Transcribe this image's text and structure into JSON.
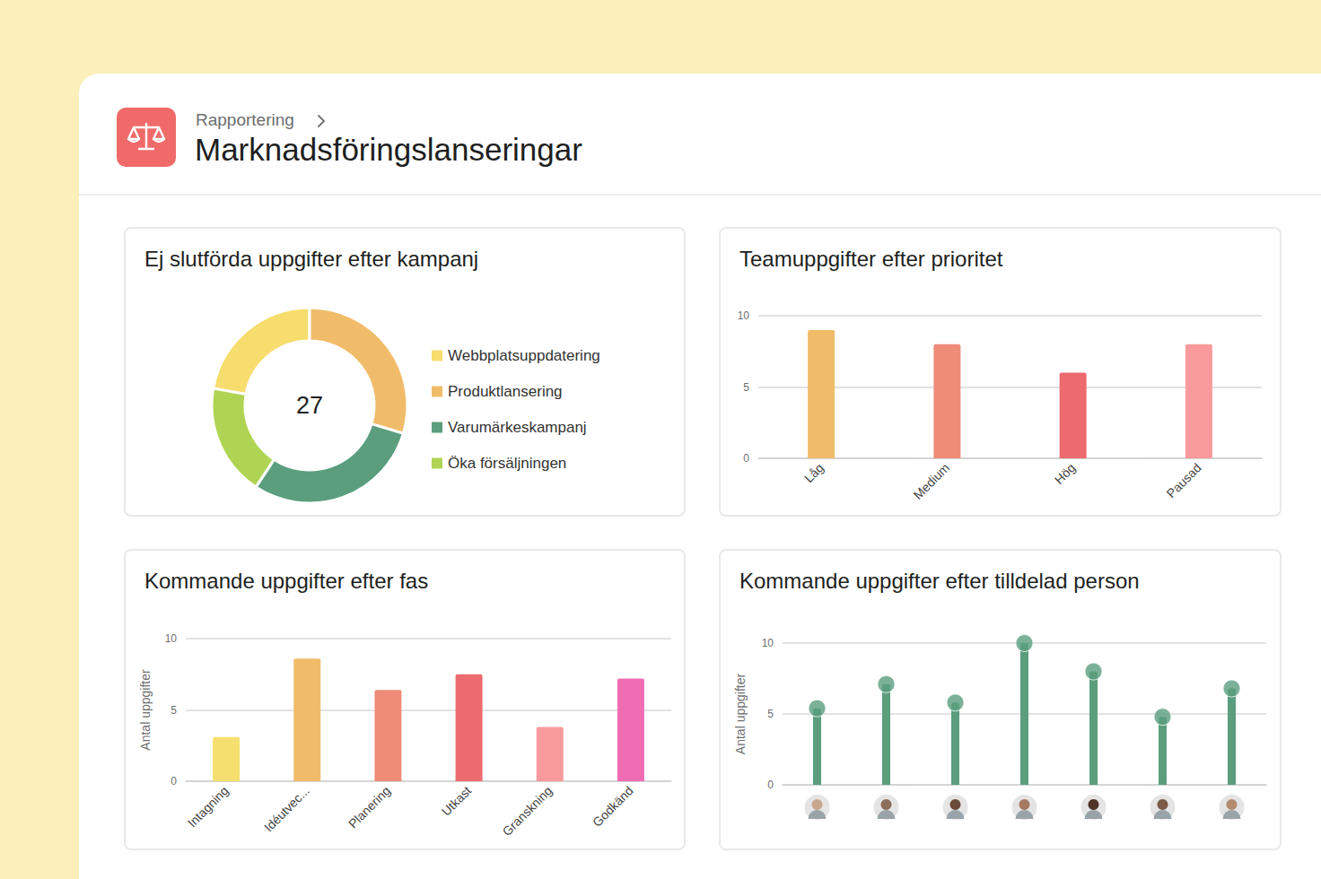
{
  "header": {
    "breadcrumb": "Rapportering",
    "title": "Marknadsföringslanseringar"
  },
  "chart_data": [
    {
      "type": "pie",
      "title": "Ej slutförda uppgifter efter kampanj",
      "total": 27,
      "categories": [
        "Webbplatsuppdatering",
        "Produktlansering",
        "Varumärkeskampanj",
        "Öka försäljningen"
      ],
      "values": [
        6,
        8,
        8,
        5
      ],
      "colors": [
        "#F6DD6D",
        "#F1BC6A",
        "#5A9E7E",
        "#AFD453"
      ],
      "legend": "right"
    },
    {
      "type": "bar",
      "title": "Teamuppgifter efter prioritet",
      "categories": [
        "Låg",
        "Medium",
        "Hög",
        "Pausad"
      ],
      "values": [
        9,
        8,
        6,
        8
      ],
      "colors": [
        "#F1BC6A",
        "#EE8C78",
        "#EC6B6E",
        "#F99A9C"
      ],
      "ylim": [
        0,
        10
      ],
      "yticks": [
        0,
        5,
        10
      ],
      "grid": true
    },
    {
      "type": "bar",
      "title": "Kommande uppgifter efter fas",
      "y_label": "Antal uppgifter",
      "categories": [
        "Intagning",
        "Idéutvec...",
        "Planering",
        "Utkast",
        "Granskning",
        "Godkänd"
      ],
      "values": [
        3.1,
        8.6,
        6.4,
        7.5,
        3.8,
        7.2
      ],
      "colors": [
        "#F5DF6E",
        "#F1BC6A",
        "#EE8C78",
        "#EC6B6E",
        "#F99A9C",
        "#F06DB4"
      ],
      "ylim": [
        0,
        10
      ],
      "yticks": [
        0,
        5,
        10
      ],
      "grid": true
    },
    {
      "type": "bar",
      "title": "Kommande uppgifter efter tilldelad person",
      "y_label": "Antal uppgifter",
      "categories": [
        null,
        null,
        null,
        null,
        null,
        null,
        null
      ],
      "values": [
        5.4,
        7.1,
        5.8,
        10,
        8,
        4.8,
        6.8
      ],
      "color": "#5A9E7E",
      "marker": "circle",
      "ylim": [
        0,
        10
      ],
      "yticks": [
        0,
        5,
        10
      ],
      "grid": true
    }
  ]
}
